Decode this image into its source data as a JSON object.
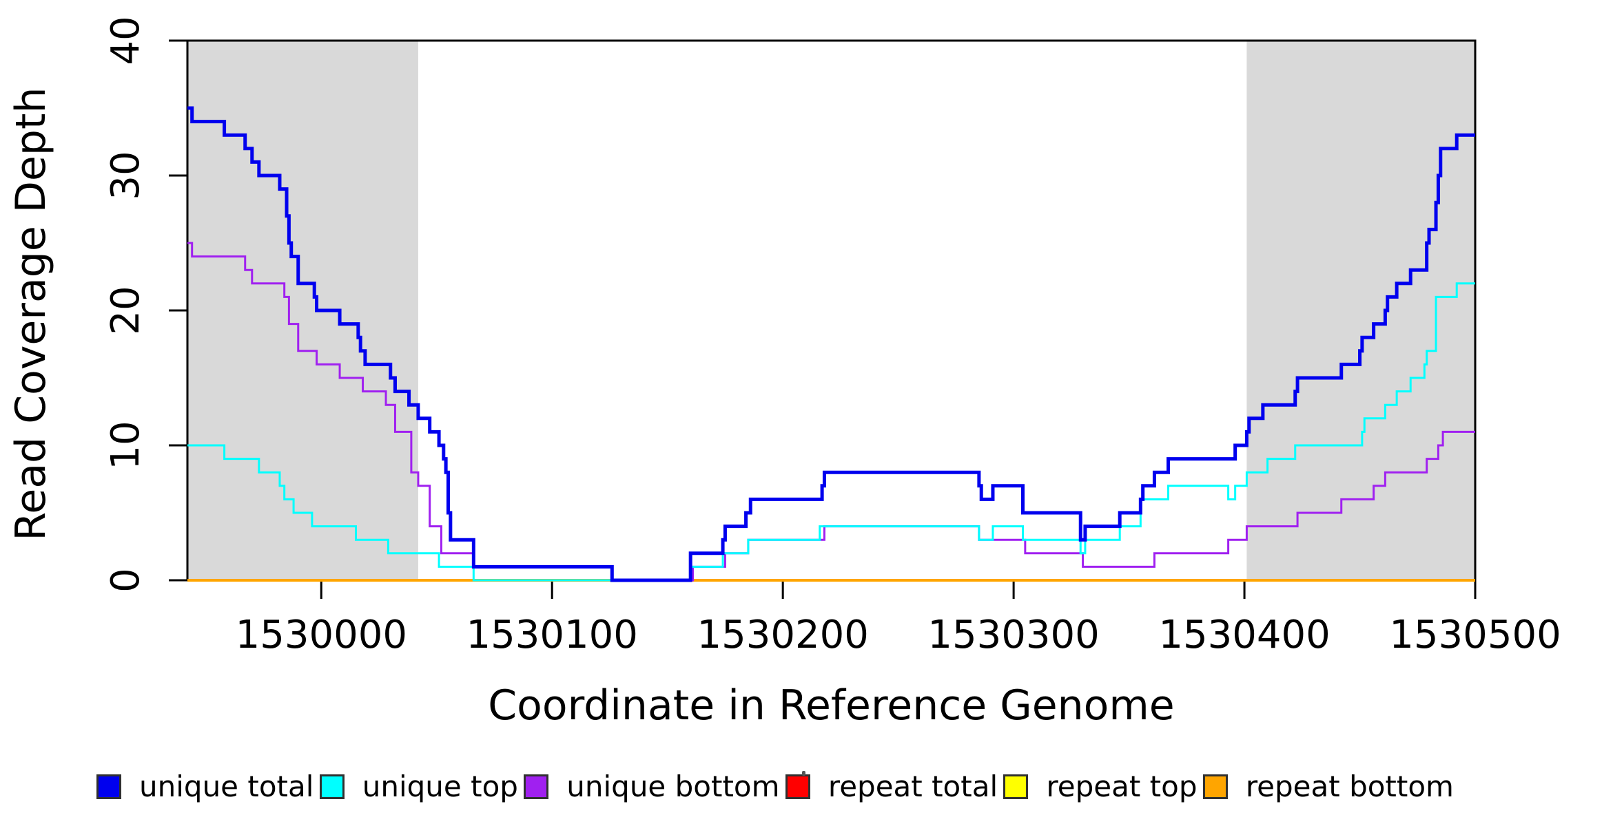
{
  "chart_data": {
    "type": "line",
    "subtype": "step",
    "title": "",
    "xlabel": "Coordinate in Reference Genome",
    "ylabel": "Read Coverage Depth",
    "xlim": [
      1529942,
      1530500
    ],
    "ylim": [
      0,
      40
    ],
    "x_ticks": [
      1530000,
      1530100,
      1530200,
      1530300,
      1530400,
      1530500
    ],
    "y_ticks": [
      0,
      10,
      20,
      30,
      40
    ],
    "grid": false,
    "background_color": "#ffffff",
    "shaded_regions": [
      {
        "name": "left-flank",
        "x0": 1529942,
        "x1": 1530042,
        "color": "#d9d9d9"
      },
      {
        "name": "right-flank",
        "x0": 1530401,
        "x1": 1530500,
        "color": "#d9d9d9"
      }
    ],
    "legend_position": "bottom",
    "draw_order": [
      "repeat total",
      "repeat top",
      "repeat bottom",
      "unique bottom",
      "unique top",
      "unique total"
    ],
    "series": [
      {
        "name": "unique total",
        "color": "#0000ee",
        "line_width": 5,
        "steps": [
          [
            1529942,
            35
          ],
          [
            1529944,
            34
          ],
          [
            1529958,
            33
          ],
          [
            1529967,
            32
          ],
          [
            1529970,
            31
          ],
          [
            1529973,
            30
          ],
          [
            1529982,
            29
          ],
          [
            1529985,
            27
          ],
          [
            1529986,
            25
          ],
          [
            1529987,
            24
          ],
          [
            1529990,
            22
          ],
          [
            1529997,
            21
          ],
          [
            1529998,
            20
          ],
          [
            1530008,
            19
          ],
          [
            1530016,
            18
          ],
          [
            1530017,
            17
          ],
          [
            1530019,
            16
          ],
          [
            1530030,
            15
          ],
          [
            1530032,
            14
          ],
          [
            1530038,
            13
          ],
          [
            1530042,
            12
          ],
          [
            1530047,
            11
          ],
          [
            1530051,
            10
          ],
          [
            1530053,
            9
          ],
          [
            1530054,
            8
          ],
          [
            1530055,
            5
          ],
          [
            1530056,
            3
          ],
          [
            1530066,
            1
          ],
          [
            1530126,
            0
          ],
          [
            1530160,
            2
          ],
          [
            1530174,
            3
          ],
          [
            1530175,
            4
          ],
          [
            1530184,
            5
          ],
          [
            1530186,
            6
          ],
          [
            1530217,
            7
          ],
          [
            1530218,
            8
          ],
          [
            1530285,
            7
          ],
          [
            1530286,
            6
          ],
          [
            1530291,
            7
          ],
          [
            1530304,
            5
          ],
          [
            1530329,
            3
          ],
          [
            1530331,
            4
          ],
          [
            1530346,
            5
          ],
          [
            1530355,
            6
          ],
          [
            1530356,
            7
          ],
          [
            1530361,
            8
          ],
          [
            1530367,
            9
          ],
          [
            1530396,
            10
          ],
          [
            1530401,
            11
          ],
          [
            1530402,
            12
          ],
          [
            1530408,
            13
          ],
          [
            1530422,
            14
          ],
          [
            1530423,
            15
          ],
          [
            1530442,
            16
          ],
          [
            1530450,
            17
          ],
          [
            1530451,
            18
          ],
          [
            1530456,
            19
          ],
          [
            1530461,
            20
          ],
          [
            1530462,
            21
          ],
          [
            1530466,
            22
          ],
          [
            1530472,
            23
          ],
          [
            1530479,
            25
          ],
          [
            1530480,
            26
          ],
          [
            1530483,
            28
          ],
          [
            1530484,
            30
          ],
          [
            1530485,
            32
          ],
          [
            1530492,
            33
          ]
        ]
      },
      {
        "name": "unique top",
        "color": "#00ffff",
        "line_width": 3,
        "steps": [
          [
            1529942,
            10
          ],
          [
            1529958,
            9
          ],
          [
            1529973,
            8
          ],
          [
            1529982,
            7
          ],
          [
            1529984,
            6
          ],
          [
            1529988,
            5
          ],
          [
            1529996,
            4
          ],
          [
            1530015,
            3
          ],
          [
            1530029,
            2
          ],
          [
            1530051,
            1
          ],
          [
            1530066,
            0
          ],
          [
            1530160,
            1
          ],
          [
            1530174,
            2
          ],
          [
            1530185,
            3
          ],
          [
            1530216,
            4
          ],
          [
            1530285,
            3
          ],
          [
            1530291,
            4
          ],
          [
            1530304,
            3
          ],
          [
            1530329,
            2
          ],
          [
            1530331,
            3
          ],
          [
            1530346,
            4
          ],
          [
            1530355,
            6
          ],
          [
            1530367,
            7
          ],
          [
            1530393,
            6
          ],
          [
            1530396,
            7
          ],
          [
            1530401,
            8
          ],
          [
            1530410,
            9
          ],
          [
            1530422,
            10
          ],
          [
            1530451,
            11
          ],
          [
            1530452,
            12
          ],
          [
            1530461,
            13
          ],
          [
            1530466,
            14
          ],
          [
            1530472,
            15
          ],
          [
            1530478,
            16
          ],
          [
            1530479,
            17
          ],
          [
            1530483,
            21
          ],
          [
            1530492,
            22
          ]
        ]
      },
      {
        "name": "unique bottom",
        "color": "#a020f0",
        "line_width": 3,
        "steps": [
          [
            1529942,
            25
          ],
          [
            1529944,
            24
          ],
          [
            1529967,
            23
          ],
          [
            1529970,
            22
          ],
          [
            1529984,
            21
          ],
          [
            1529986,
            19
          ],
          [
            1529990,
            17
          ],
          [
            1529998,
            16
          ],
          [
            1530008,
            15
          ],
          [
            1530018,
            14
          ],
          [
            1530028,
            13
          ],
          [
            1530032,
            11
          ],
          [
            1530039,
            8
          ],
          [
            1530042,
            7
          ],
          [
            1530047,
            4
          ],
          [
            1530052,
            2
          ],
          [
            1530066,
            1
          ],
          [
            1530126,
            0
          ],
          [
            1530161,
            1
          ],
          [
            1530175,
            2
          ],
          [
            1530185,
            3
          ],
          [
            1530218,
            4
          ],
          [
            1530285,
            3
          ],
          [
            1530305,
            2
          ],
          [
            1530330,
            1
          ],
          [
            1530361,
            2
          ],
          [
            1530393,
            3
          ],
          [
            1530401,
            4
          ],
          [
            1530423,
            5
          ],
          [
            1530442,
            6
          ],
          [
            1530456,
            7
          ],
          [
            1530461,
            8
          ],
          [
            1530479,
            9
          ],
          [
            1530484,
            10
          ],
          [
            1530486,
            11
          ]
        ]
      },
      {
        "name": "repeat total",
        "color": "#ff0000",
        "line_width": 3,
        "steps": [
          [
            1529942,
            0
          ]
        ]
      },
      {
        "name": "repeat top",
        "color": "#ffff00",
        "line_width": 3,
        "steps": [
          [
            1529942,
            0
          ]
        ]
      },
      {
        "name": "repeat bottom",
        "color": "#ffa500",
        "line_width": 4,
        "steps": [
          [
            1529942,
            0
          ]
        ]
      }
    ],
    "legend": [
      {
        "label": "unique total",
        "color": "#0000ee"
      },
      {
        "label": "unique top",
        "color": "#00ffff"
      },
      {
        "label": "unique bottom",
        "color": "#a020f0"
      },
      {
        "label": "repeat total",
        "color": "#ff0000"
      },
      {
        "label": "repeat top",
        "color": "#ffff00"
      },
      {
        "label": "repeat bottom",
        "color": "#ffa500"
      }
    ]
  }
}
